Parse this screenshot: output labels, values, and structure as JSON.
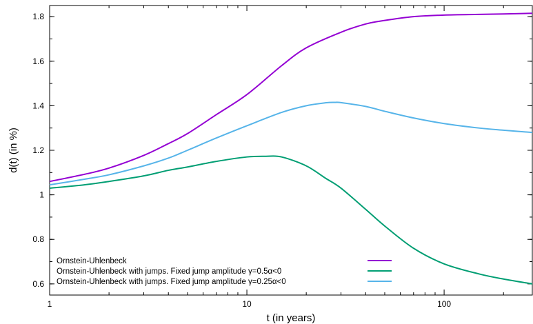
{
  "chart_data": {
    "type": "line",
    "title": "",
    "xlabel": "t (in years)",
    "ylabel": "d(t) (in %)",
    "x_scale": "log",
    "xlim": [
      1,
      280
    ],
    "ylim": [
      0.55,
      1.85
    ],
    "x_ticks": [
      1,
      10,
      100
    ],
    "x_tick_labels": [
      "1",
      "10",
      "100"
    ],
    "y_ticks": [
      0.6,
      0.8,
      1.0,
      1.2,
      1.4,
      1.6,
      1.8
    ],
    "y_tick_labels": [
      "0.6",
      "0.8",
      "1",
      "1.2",
      "1.4",
      "1.6",
      "1.8"
    ],
    "grid": false,
    "legend_position": "bottom-left",
    "series": [
      {
        "name": "Ornstein-Uhlenbeck",
        "color": "#9400d3",
        "x": [
          1,
          1.5,
          2,
          3,
          4,
          5,
          7,
          10,
          15,
          20,
          30,
          40,
          50,
          70,
          100,
          150,
          200,
          280
        ],
        "y": [
          1.06,
          1.092,
          1.12,
          1.177,
          1.23,
          1.275,
          1.36,
          1.45,
          1.58,
          1.66,
          1.73,
          1.767,
          1.783,
          1.8,
          1.807,
          1.81,
          1.812,
          1.815
        ]
      },
      {
        "name": "Ornstein-Uhlenbeck with jumps. Fixed jump amplitude γ=0.5α<0",
        "color": "#009e73",
        "x": [
          1,
          1.5,
          2,
          3,
          4,
          5,
          7,
          10,
          12.5,
          15,
          20,
          25,
          30,
          40,
          50,
          70,
          100,
          150,
          200,
          280
        ],
        "y": [
          1.03,
          1.045,
          1.06,
          1.085,
          1.11,
          1.125,
          1.15,
          1.17,
          1.173,
          1.17,
          1.13,
          1.075,
          1.03,
          0.935,
          0.86,
          0.76,
          0.69,
          0.645,
          0.622,
          0.6
        ]
      },
      {
        "name": "Ornstein-Uhlenbeck with jumps. Fixed jump amplitude γ=0.25α<0",
        "color": "#56b4e9",
        "x": [
          1,
          1.5,
          2,
          3,
          4,
          5,
          7,
          10,
          15,
          20,
          25,
          28,
          30,
          40,
          50,
          70,
          100,
          150,
          200,
          280
        ],
        "y": [
          1.045,
          1.07,
          1.09,
          1.13,
          1.165,
          1.2,
          1.255,
          1.31,
          1.37,
          1.4,
          1.413,
          1.415,
          1.414,
          1.397,
          1.375,
          1.345,
          1.32,
          1.3,
          1.29,
          1.28
        ]
      }
    ]
  }
}
